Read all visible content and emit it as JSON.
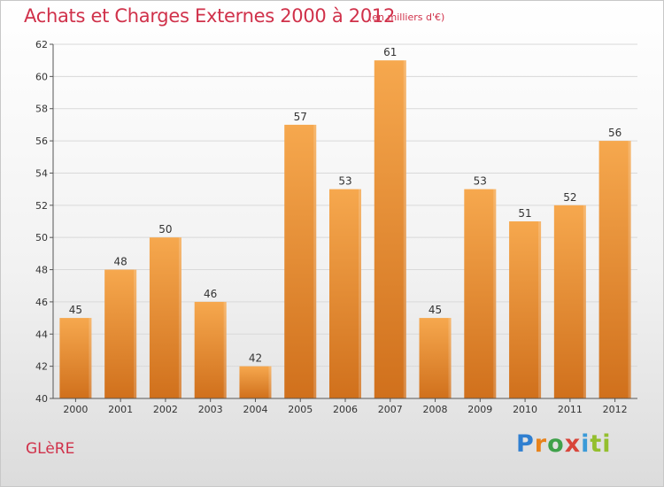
{
  "header": {
    "title": "Achats et Charges Externes 2000 à 2012",
    "subtitle": "(en milliers d'€)"
  },
  "footer": {
    "commune": "GLèRE",
    "logo": "Proxiti"
  },
  "colors": {
    "title": "#d0314a",
    "bar_light": "#f6a84e",
    "bar_dark": "#d0701c",
    "grid": "#d9d9d9"
  },
  "chart_data": {
    "type": "bar",
    "title": "Achats et Charges Externes 2000 à 2012",
    "subtitle": "(en milliers d'€)",
    "categories": [
      "2000",
      "2001",
      "2002",
      "2003",
      "2004",
      "2005",
      "2006",
      "2007",
      "2008",
      "2009",
      "2010",
      "2011",
      "2012"
    ],
    "values": [
      45,
      48,
      50,
      46,
      42,
      57,
      53,
      61,
      45,
      53,
      51,
      52,
      56
    ],
    "ylim": [
      40,
      62
    ],
    "yticks": [
      40,
      42,
      44,
      46,
      48,
      50,
      52,
      54,
      56,
      58,
      60,
      62
    ],
    "grid": true,
    "data_labels": true
  }
}
